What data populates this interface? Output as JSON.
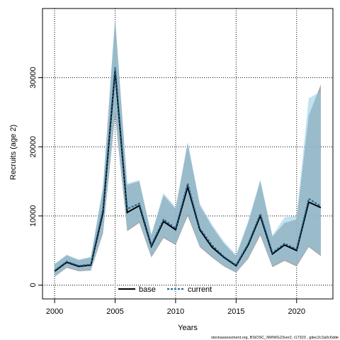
{
  "chart_data": {
    "type": "line",
    "xlabel": "Years",
    "ylabel": "Recruits (age 2)",
    "xlim": [
      1999,
      2023
    ],
    "ylim": [
      -2000,
      40000
    ],
    "x_ticks": [
      2000,
      2005,
      2010,
      2015,
      2020
    ],
    "y_ticks": [
      0,
      10000,
      20000,
      30000
    ],
    "grid": true,
    "legend_position": "bottom-center",
    "x": [
      2000,
      2001,
      2002,
      2003,
      2004,
      2005,
      2006,
      2007,
      2008,
      2009,
      2010,
      2011,
      2012,
      2013,
      2014,
      2015,
      2016,
      2017,
      2018,
      2019,
      2020,
      2021,
      2022
    ],
    "series": [
      {
        "name": "base",
        "color": "#000000",
        "line_style": "solid",
        "values": [
          2000,
          3300,
          2700,
          2900,
          10500,
          31000,
          10500,
          11500,
          5600,
          9200,
          8000,
          14200,
          8000,
          5500,
          4000,
          2800,
          5800,
          10000,
          4500,
          5800,
          5000,
          12000,
          11200
        ],
        "band_lower": [
          1200,
          2500,
          2000,
          2100,
          7500,
          24500,
          7800,
          9000,
          4000,
          6800,
          5800,
          10000,
          5500,
          4000,
          2700,
          1800,
          3800,
          7200,
          2600,
          3500,
          2700,
          5500,
          4200
        ],
        "band_upper": [
          3000,
          4300,
          3600,
          4000,
          14000,
          38500,
          14500,
          15000,
          7200,
          13000,
          11000,
          20500,
          11500,
          8500,
          6000,
          4200,
          9000,
          15000,
          7000,
          9000,
          9500,
          24500,
          29000
        ],
        "band_color": "#999999"
      },
      {
        "name": "current",
        "color": "#1f5f8b",
        "line_style": "dashed",
        "values": [
          2100,
          3400,
          2800,
          3000,
          11000,
          31500,
          11000,
          11800,
          5800,
          9500,
          8200,
          14700,
          8200,
          5800,
          4100,
          2900,
          6000,
          10300,
          4700,
          6000,
          5200,
          12500,
          11400
        ],
        "band_lower": [
          1300,
          2600,
          2100,
          2200,
          7800,
          25000,
          8000,
          9200,
          4200,
          7000,
          6000,
          10300,
          5700,
          4200,
          2800,
          1900,
          4000,
          7500,
          2800,
          3700,
          2900,
          5700,
          4400
        ],
        "band_upper": [
          3100,
          4400,
          3700,
          4100,
          14300,
          38800,
          14700,
          15200,
          7400,
          13300,
          11300,
          20700,
          11800,
          8800,
          6300,
          4400,
          9300,
          15300,
          7200,
          9800,
          10000,
          27000,
          28000
        ],
        "band_color": "#8ecae6"
      }
    ]
  },
  "footer": "stockassessment.org, BSiOSC_NWWG23ver2, r17323 , gitec2c2a0c6dde"
}
